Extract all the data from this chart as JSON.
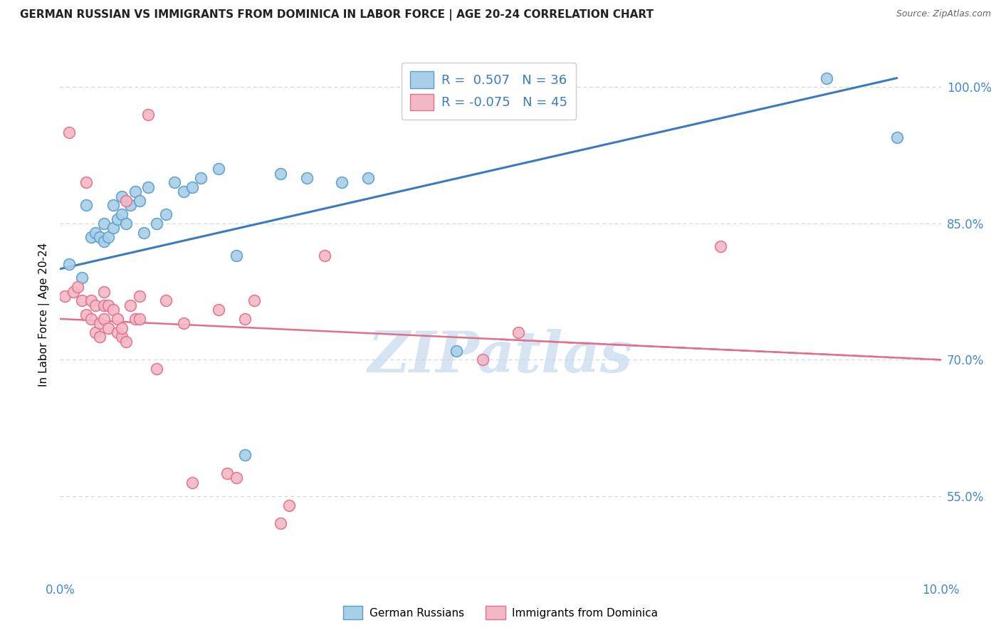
{
  "title": "GERMAN RUSSIAN VS IMMIGRANTS FROM DOMINICA IN LABOR FORCE | AGE 20-24 CORRELATION CHART",
  "source": "Source: ZipAtlas.com",
  "ylabel": "In Labor Force | Age 20-24",
  "x_min": 0.0,
  "x_max": 10.0,
  "y_min": 46.0,
  "y_max": 104.0,
  "x_ticks": [
    0.0,
    2.0,
    4.0,
    6.0,
    8.0,
    10.0
  ],
  "x_tick_labels": [
    "0.0%",
    "",
    "",
    "",
    "",
    "10.0%"
  ],
  "y_ticks": [
    55.0,
    70.0,
    85.0,
    100.0
  ],
  "y_tick_labels": [
    "55.0%",
    "70.0%",
    "85.0%",
    "100.0%"
  ],
  "blue_r": "0.507",
  "blue_n": "36",
  "pink_r": "-0.075",
  "pink_n": "45",
  "blue_color": "#a8cfe8",
  "blue_edge_color": "#5a9ec9",
  "pink_color": "#f4b8c4",
  "pink_edge_color": "#e07090",
  "blue_line_color": "#3a7abf",
  "pink_line_color": "#e0708a",
  "watermark_color": "#c5d8ee",
  "blue_x": [
    0.1,
    0.25,
    0.3,
    0.35,
    0.4,
    0.45,
    0.5,
    0.5,
    0.55,
    0.6,
    0.6,
    0.65,
    0.7,
    0.7,
    0.75,
    0.8,
    0.85,
    0.9,
    0.95,
    1.0,
    1.1,
    1.2,
    1.3,
    1.4,
    1.5,
    1.6,
    1.8,
    2.0,
    2.1,
    2.5,
    2.8,
    3.2,
    3.5,
    4.5,
    8.7,
    9.5
  ],
  "blue_y": [
    80.5,
    79.0,
    87.0,
    83.5,
    84.0,
    83.5,
    83.0,
    85.0,
    83.5,
    84.5,
    87.0,
    85.5,
    86.0,
    88.0,
    85.0,
    87.0,
    88.5,
    87.5,
    84.0,
    89.0,
    85.0,
    86.0,
    89.5,
    88.5,
    89.0,
    90.0,
    91.0,
    81.5,
    59.5,
    90.5,
    90.0,
    89.5,
    90.0,
    71.0,
    101.0,
    94.5
  ],
  "pink_x": [
    0.05,
    0.1,
    0.15,
    0.2,
    0.25,
    0.3,
    0.3,
    0.35,
    0.35,
    0.4,
    0.4,
    0.45,
    0.45,
    0.5,
    0.5,
    0.5,
    0.55,
    0.55,
    0.6,
    0.65,
    0.65,
    0.7,
    0.7,
    0.75,
    0.75,
    0.8,
    0.85,
    0.9,
    0.9,
    1.0,
    1.1,
    1.2,
    1.4,
    1.5,
    1.8,
    1.9,
    2.0,
    2.1,
    2.2,
    2.5,
    2.6,
    3.0,
    4.8,
    5.2,
    7.5
  ],
  "pink_y": [
    77.0,
    95.0,
    77.5,
    78.0,
    76.5,
    75.0,
    89.5,
    76.5,
    74.5,
    76.0,
    73.0,
    74.0,
    72.5,
    74.5,
    76.0,
    77.5,
    73.5,
    76.0,
    75.5,
    73.0,
    74.5,
    72.5,
    73.5,
    87.5,
    72.0,
    76.0,
    74.5,
    74.5,
    77.0,
    97.0,
    69.0,
    76.5,
    74.0,
    56.5,
    75.5,
    57.5,
    57.0,
    74.5,
    76.5,
    52.0,
    54.0,
    81.5,
    70.0,
    73.0,
    82.5
  ],
  "blue_line_x0": 0.0,
  "blue_line_y0": 80.0,
  "blue_line_x1": 9.5,
  "blue_line_y1": 101.0,
  "pink_line_x0": 0.0,
  "pink_line_y0": 74.5,
  "pink_line_x1": 10.0,
  "pink_line_y1": 70.0
}
